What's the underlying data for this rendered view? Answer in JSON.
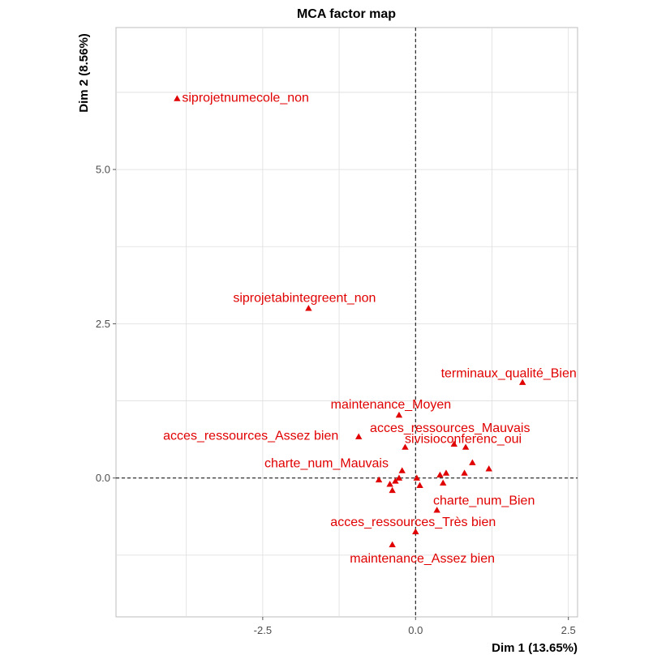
{
  "chart_data": {
    "type": "scatter",
    "title": "MCA factor map",
    "xlabel": "Dim 1 (13.65%)",
    "ylabel": "Dim 2 (8.56%)",
    "xlim": [
      -4.9,
      2.65
    ],
    "ylim": [
      -2.25,
      7.3
    ],
    "xticks": [
      -2.5,
      0.0,
      2.5
    ],
    "xtick_labels": [
      "-2.5",
      "0.0",
      "2.5"
    ],
    "yticks": [
      0.0,
      2.5,
      5.0
    ],
    "ytick_labels": [
      "0.0",
      "2.5",
      "5.0"
    ],
    "grid": true,
    "reference_lines": {
      "x": 0,
      "y": 0,
      "style": "dashed"
    },
    "marker": "triangle",
    "point_color": "#e00000",
    "labeled_points": [
      {
        "label": "siprojetnumecole_non",
        "x": -3.9,
        "y": 6.15
      },
      {
        "label": "siprojetabintegreent_non",
        "x": -1.75,
        "y": 2.75
      },
      {
        "label": "terminaux_qualité_Bien",
        "x": 1.75,
        "y": 1.55
      },
      {
        "label": "maintenance_Moyen",
        "x": -0.27,
        "y": 1.02
      },
      {
        "label": "acces_ressources_Mauvais",
        "x": 0.63,
        "y": 0.55
      },
      {
        "label": "acces_ressources_Assez bien",
        "x": -0.93,
        "y": 0.67
      },
      {
        "label": "sivisioconferenc_oui",
        "x": 0.82,
        "y": 0.5
      },
      {
        "label": "charte_num_Mauvais",
        "x": -0.17,
        "y": 0.5
      },
      {
        "label": "charte_num_Bien",
        "x": 0.35,
        "y": -0.52
      },
      {
        "label": "acces_ressources_Très bien",
        "x": 0.0,
        "y": -0.87
      },
      {
        "label": "maintenance_Assez bien",
        "x": -0.38,
        "y": -1.08
      }
    ],
    "unlabeled_points": [
      {
        "x": -0.6,
        "y": -0.03
      },
      {
        "x": -0.42,
        "y": -0.1
      },
      {
        "x": -0.38,
        "y": -0.2
      },
      {
        "x": -0.33,
        "y": -0.05
      },
      {
        "x": -0.27,
        "y": 0.0
      },
      {
        "x": -0.22,
        "y": 0.12
      },
      {
        "x": 0.02,
        "y": 0.0
      },
      {
        "x": 0.07,
        "y": -0.12
      },
      {
        "x": 0.4,
        "y": 0.05
      },
      {
        "x": 0.45,
        "y": -0.08
      },
      {
        "x": 0.5,
        "y": 0.08
      },
      {
        "x": 0.8,
        "y": 0.08
      },
      {
        "x": 0.93,
        "y": 0.25
      },
      {
        "x": 1.2,
        "y": 0.15
      }
    ]
  }
}
